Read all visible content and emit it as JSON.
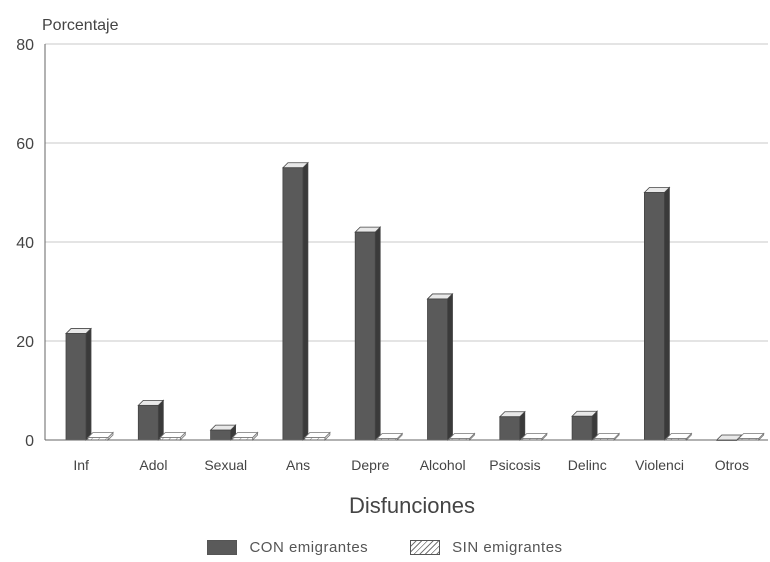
{
  "chart_data": {
    "type": "bar",
    "ylabel": "Porcentaje",
    "xlabel": "Disfunciones",
    "ylim": [
      0,
      80
    ],
    "yticks": [
      0,
      20,
      40,
      60,
      80
    ],
    "grid": true,
    "legend_position": "bottom",
    "categories": [
      "Inf",
      "Adol",
      "Sexual",
      "Ans",
      "Depre",
      "Alcohol",
      "Psicosis",
      "Delinc",
      "Violenci",
      "Otros"
    ],
    "series": [
      {
        "name": "CON emigrantes",
        "values": [
          21.5,
          7,
          2,
          55,
          42,
          28.5,
          4.7,
          4.8,
          50,
          0
        ]
      },
      {
        "name": "SIN emigrantes",
        "values": [
          0.5,
          0.5,
          0.5,
          0.5,
          0.3,
          0.3,
          0.3,
          0.3,
          0.3,
          0.3
        ]
      }
    ]
  },
  "colors": {
    "con": "#5a5a5a",
    "sin": "#ffffff",
    "grid": "#c8c8c8",
    "axis": "#666666"
  }
}
